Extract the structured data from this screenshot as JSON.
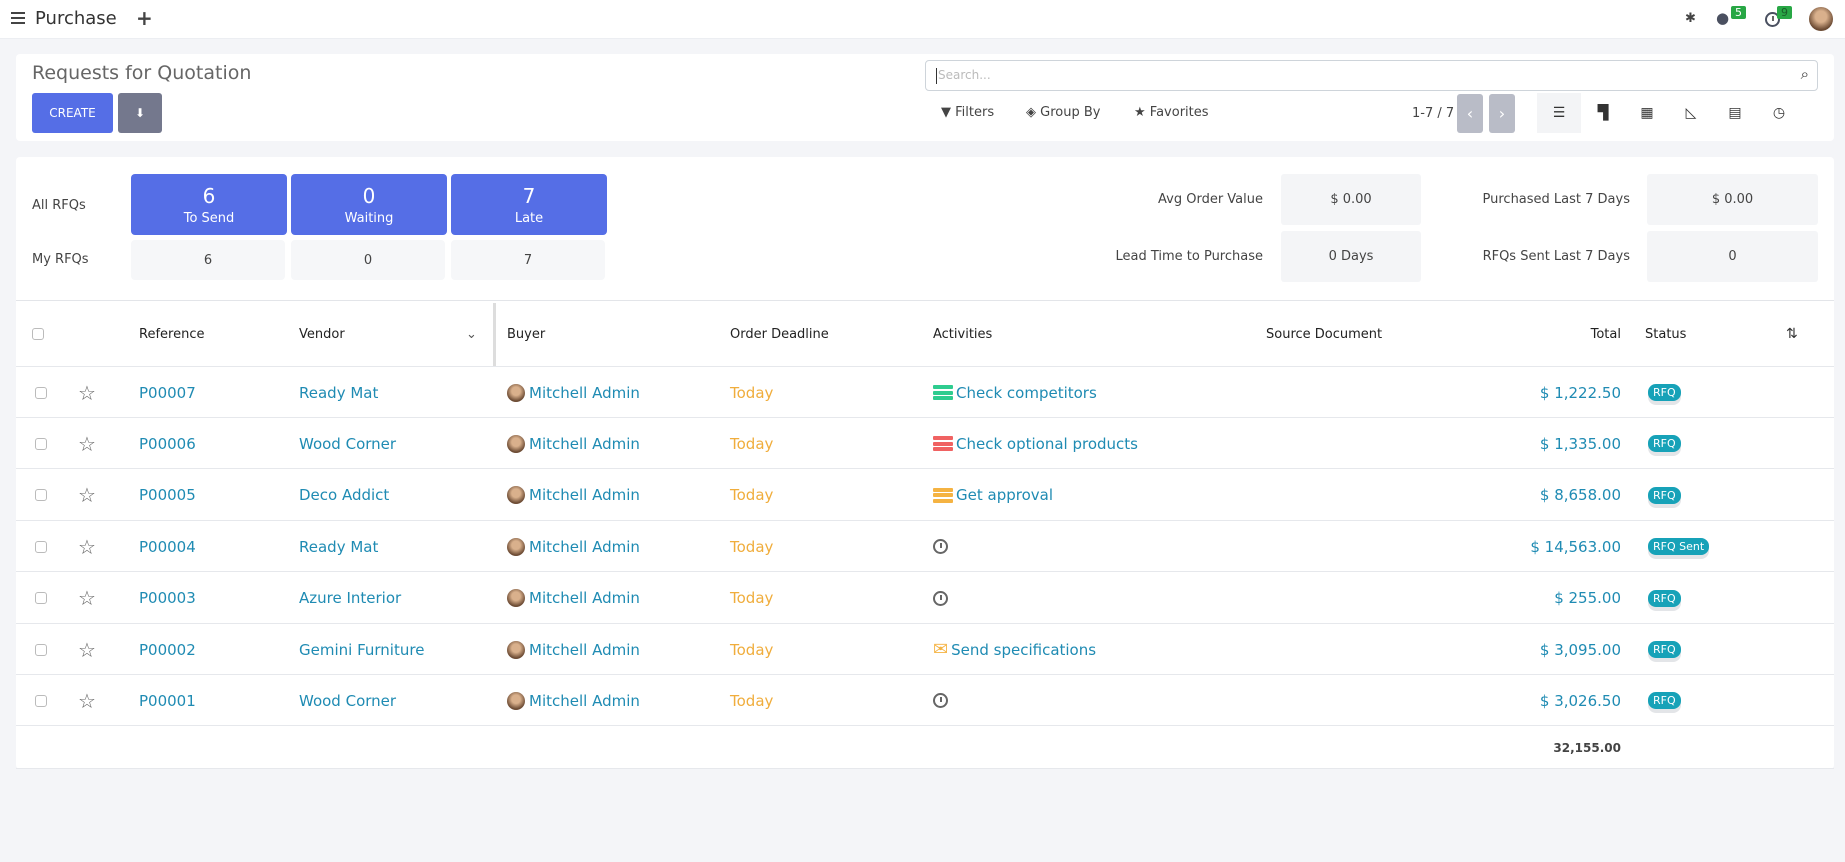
{
  "topbar": {
    "app": "Purchase",
    "messages_count": "5",
    "activities_count": "9"
  },
  "control": {
    "title": "Requests for Quotation",
    "create": "CREATE",
    "search_placeholder": "Search...",
    "filters": "Filters",
    "group_by": "Group By",
    "favorites": "Favorites",
    "pager": "1-7 / 7"
  },
  "dashboard": {
    "all_label": "All RFQs",
    "my_label": "My RFQs",
    "tiles": [
      {
        "count": "6",
        "label": "To Send",
        "mine": "6"
      },
      {
        "count": "0",
        "label": "Waiting",
        "mine": "0"
      },
      {
        "count": "7",
        "label": "Late",
        "mine": "7"
      }
    ],
    "stats": [
      {
        "label": "Avg Order Value",
        "value": "$ 0.00"
      },
      {
        "label": "Purchased Last 7 Days",
        "value": "$ 0.00"
      },
      {
        "label": "Lead Time to Purchase",
        "value": "0 Days"
      },
      {
        "label": "RFQs Sent Last 7 Days",
        "value": "0"
      }
    ]
  },
  "table": {
    "headers": {
      "reference": "Reference",
      "vendor": "Vendor",
      "buyer": "Buyer",
      "deadline": "Order Deadline",
      "activities": "Activities",
      "source": "Source Document",
      "total": "Total",
      "status": "Status"
    },
    "rows": [
      {
        "ref": "P00007",
        "vendor": "Ready Mat",
        "buyer": "Mitchell Admin",
        "deadline": "Today",
        "activity": "Check competitors",
        "activity_color": "#2ecc8f",
        "total": "$ 1,222.50",
        "status": "RFQ"
      },
      {
        "ref": "P00006",
        "vendor": "Wood Corner",
        "buyer": "Mitchell Admin",
        "deadline": "Today",
        "activity": "Check optional products",
        "activity_color": "#f06262",
        "total": "$ 1,335.00",
        "status": "RFQ"
      },
      {
        "ref": "P00005",
        "vendor": "Deco Addict",
        "buyer": "Mitchell Admin",
        "deadline": "Today",
        "activity": "Get approval",
        "activity_color": "#f5b342",
        "total": "$ 8,658.00",
        "status": "RFQ"
      },
      {
        "ref": "P00004",
        "vendor": "Ready Mat",
        "buyer": "Mitchell Admin",
        "deadline": "Today",
        "activity": "",
        "activity_color": "",
        "total": "$ 14,563.00",
        "status": "RFQ Sent"
      },
      {
        "ref": "P00003",
        "vendor": "Azure Interior",
        "buyer": "Mitchell Admin",
        "deadline": "Today",
        "activity": "",
        "activity_color": "",
        "total": "$ 255.00",
        "status": "RFQ"
      },
      {
        "ref": "P00002",
        "vendor": "Gemini Furniture",
        "buyer": "Mitchell Admin",
        "deadline": "Today",
        "activity": "Send specifications",
        "activity_color": "#f5b342",
        "activity_icon": "envelope-icon",
        "total": "$ 3,095.00",
        "status": "RFQ"
      },
      {
        "ref": "P00001",
        "vendor": "Wood Corner",
        "buyer": "Mitchell Admin",
        "deadline": "Today",
        "activity": "",
        "activity_color": "",
        "total": "$ 3,026.50",
        "status": "RFQ"
      }
    ],
    "sum_total": "32,155.00"
  },
  "colors": {
    "primary": "#556ee6",
    "link": "#1f8bb3",
    "today": "#f0ad3c",
    "badge": "#17a2b8"
  }
}
